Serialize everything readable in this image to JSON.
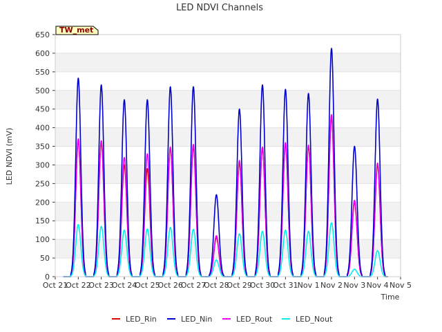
{
  "chart_data": {
    "type": "line",
    "title": "LED NDVI Channels",
    "xlabel": "Time",
    "ylabel": "LED NDVI (mV)",
    "annotation": "TW_met",
    "xlim": [
      "Oct 21",
      "Nov 5"
    ],
    "ylim": [
      0,
      650
    ],
    "yticks": [
      0,
      50,
      100,
      150,
      200,
      250,
      300,
      350,
      400,
      450,
      500,
      550,
      600,
      650
    ],
    "xticks": [
      "Oct 21",
      "Oct 22",
      "Oct 23",
      "Oct 24",
      "Oct 25",
      "Oct 26",
      "Oct 27",
      "Oct 28",
      "Oct 29",
      "Oct 30",
      "Oct 31",
      "Nov 1",
      "Nov 2",
      "Nov 3",
      "Nov 4",
      "Nov 5"
    ],
    "grid": "horizontal bands",
    "legend_position": "bottom",
    "day_peaks": [
      "Oct 22",
      "Oct 23",
      "Oct 24",
      "Oct 25",
      "Oct 26",
      "Oct 27",
      "Oct 28",
      "Oct 29",
      "Oct 30",
      "Oct 31",
      "Nov 1",
      "Nov 2",
      "Nov 3",
      "Nov 4"
    ],
    "series": [
      {
        "name": "LED_Rin",
        "color": "#dd0000",
        "peak_values": [
          365,
          360,
          300,
          290,
          345,
          350,
          105,
          305,
          345,
          355,
          350,
          430,
          200,
          300
        ]
      },
      {
        "name": "LED_Nin",
        "color": "#0000cc",
        "peak_values": [
          533,
          515,
          475,
          475,
          510,
          510,
          220,
          450,
          515,
          503,
          492,
          613,
          350,
          477
        ]
      },
      {
        "name": "LED_Rout",
        "color": "#ee00ee",
        "peak_values": [
          370,
          365,
          320,
          330,
          348,
          355,
          110,
          312,
          348,
          360,
          353,
          435,
          205,
          305
        ]
      },
      {
        "name": "LED_Nout",
        "color": "#00eeee",
        "peak_values": [
          140,
          135,
          125,
          128,
          132,
          127,
          45,
          115,
          122,
          125,
          122,
          145,
          20,
          70
        ]
      }
    ]
  }
}
